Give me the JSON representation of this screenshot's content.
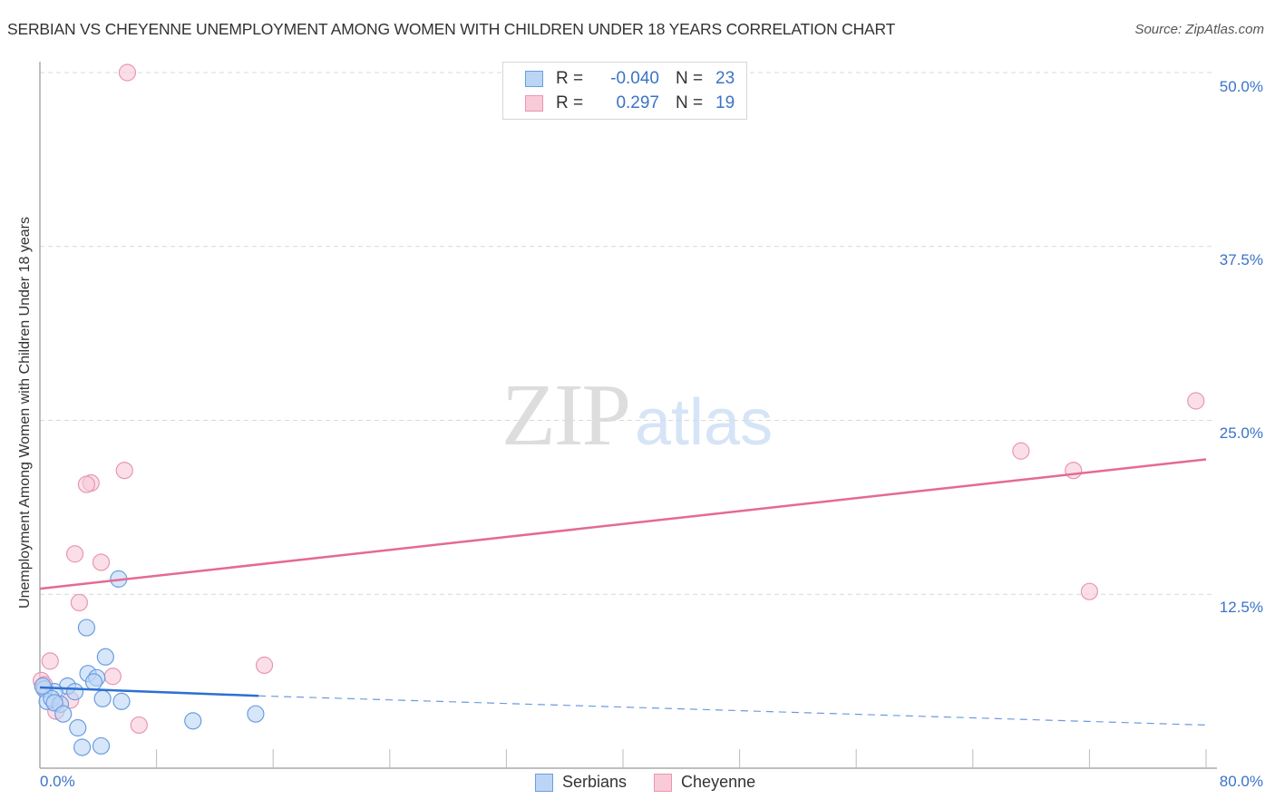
{
  "header": {
    "title": "SERBIAN VS CHEYENNE UNEMPLOYMENT AMONG WOMEN WITH CHILDREN UNDER 18 YEARS CORRELATION CHART",
    "source": "Source: ZipAtlas.com"
  },
  "watermark": {
    "zip": "ZIP",
    "atlas": "atlas"
  },
  "axes": {
    "ylabel": "Unemployment Among Women with Children Under 18 years",
    "yticks": [
      "50.0%",
      "37.5%",
      "25.0%",
      "12.5%"
    ],
    "xtick_left": "0.0%",
    "xtick_right": "80.0%"
  },
  "legend": {
    "rows": [
      {
        "r_label": "R =",
        "r_value": "-0.040",
        "n_label": "N =",
        "n_value": "23"
      },
      {
        "r_label": "R =",
        "r_value": "0.297",
        "n_label": "N =",
        "n_value": "19"
      }
    ],
    "series": [
      "Serbians",
      "Cheyenne"
    ]
  },
  "colors": {
    "serbians_fill": "#bcd5f5",
    "serbians_stroke": "#6a9ee0",
    "serbians_line": "#2e6fd3",
    "cheyenne_fill": "#f9cad8",
    "cheyenne_stroke": "#e996b1",
    "cheyenne_line": "#e46a92",
    "tick_text": "#3b73c8"
  },
  "chart_data": {
    "type": "scatter",
    "title": "SERBIAN VS CHEYENNE UNEMPLOYMENT AMONG WOMEN WITH CHILDREN UNDER 18 YEARS CORRELATION CHART",
    "xlabel": "",
    "ylabel": "Unemployment Among Women with Children Under 18 years",
    "xlim": [
      0,
      80
    ],
    "ylim": [
      0,
      52
    ],
    "x_ticks": [
      "0.0%",
      "80.0%"
    ],
    "y_ticks": [
      "12.5%",
      "25.0%",
      "37.5%",
      "50.0%"
    ],
    "grid": "horizontal dashed",
    "legend_position": "bottom-center",
    "series": [
      {
        "name": "Serbians",
        "R": -0.04,
        "N": 23,
        "points": [
          [
            5.4,
            13.6
          ],
          [
            3.2,
            10.1
          ],
          [
            4.5,
            8.0
          ],
          [
            3.3,
            6.8
          ],
          [
            3.9,
            6.5
          ],
          [
            3.7,
            6.2
          ],
          [
            1.9,
            5.9
          ],
          [
            1.0,
            5.5
          ],
          [
            0.3,
            5.7
          ],
          [
            2.4,
            5.5
          ],
          [
            4.3,
            5.0
          ],
          [
            5.6,
            4.8
          ],
          [
            0.5,
            4.8
          ],
          [
            0.8,
            5.0
          ],
          [
            1.4,
            4.6
          ],
          [
            1.0,
            4.7
          ],
          [
            1.6,
            3.9
          ],
          [
            2.6,
            2.9
          ],
          [
            2.9,
            1.5
          ],
          [
            4.2,
            1.6
          ],
          [
            10.5,
            3.4
          ],
          [
            14.8,
            3.9
          ],
          [
            0.2,
            5.9
          ]
        ],
        "trend": {
          "x": [
            0,
            15
          ],
          "y": [
            5.8,
            5.2
          ],
          "extended_dashed_to": [
            80,
            3.1
          ]
        }
      },
      {
        "name": "Cheyenne",
        "R": 0.297,
        "N": 19,
        "points": [
          [
            6.0,
            50.0
          ],
          [
            79.3,
            26.4
          ],
          [
            67.3,
            22.8
          ],
          [
            70.9,
            21.4
          ],
          [
            72.0,
            12.7
          ],
          [
            5.8,
            21.4
          ],
          [
            3.5,
            20.5
          ],
          [
            3.2,
            20.4
          ],
          [
            2.4,
            15.4
          ],
          [
            4.2,
            14.8
          ],
          [
            2.7,
            11.9
          ],
          [
            0.7,
            7.7
          ],
          [
            5.0,
            6.6
          ],
          [
            15.4,
            7.4
          ],
          [
            6.8,
            3.1
          ],
          [
            0.1,
            6.3
          ],
          [
            2.1,
            4.9
          ],
          [
            1.1,
            4.1
          ],
          [
            0.3,
            6.0
          ]
        ],
        "trend": {
          "x": [
            0,
            80
          ],
          "y": [
            12.9,
            22.2
          ]
        }
      }
    ]
  }
}
